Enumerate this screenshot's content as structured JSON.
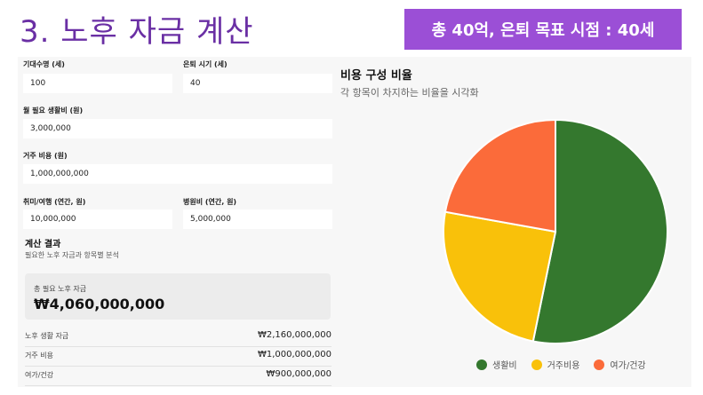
{
  "slide": {
    "title": "3. 노후 자금 계산",
    "goal_banner": "총 40억, 은퇴 목표 시점 : 40세"
  },
  "form": {
    "life_expectancy": {
      "label": "기대수명 (세)",
      "value": "100"
    },
    "retire_age": {
      "label": "은퇴 시기 (세)",
      "value": "40"
    },
    "monthly_living": {
      "label": "월 필요 생활비 (원)",
      "value": "3,000,000"
    },
    "housing": {
      "label": "거주 비용 (원)",
      "value": "1,000,000,000"
    },
    "hobby_travel": {
      "label": "취미/여행 (연간, 원)",
      "value": "10,000,000"
    },
    "hospital": {
      "label": "병원비 (연간, 원)",
      "value": "5,000,000"
    }
  },
  "result": {
    "title": "계산 결과",
    "subtitle": "필요한 노후 자금과 항목별 분석",
    "total_label": "총 필요 노후 자금",
    "total_value": "₩4,060,000,000",
    "rows": [
      {
        "label": "노후 생활 자금",
        "value": "₩2,160,000,000"
      },
      {
        "label": "거주 비용",
        "value": "₩1,000,000,000"
      },
      {
        "label": "여가/건강",
        "value": "₩900,000,000"
      }
    ]
  },
  "chart": {
    "title": "비용 구성 비율",
    "subtitle": "각 항목이 차지하는 비율을 시각화"
  },
  "chart_data": {
    "type": "pie",
    "categories": [
      "생활비",
      "거주비용",
      "여가/건강"
    ],
    "values": [
      2160000000,
      1000000000,
      900000000
    ],
    "colors": [
      "#34782e",
      "#f9c10a",
      "#fb6b3a"
    ],
    "legend": "bottom"
  }
}
